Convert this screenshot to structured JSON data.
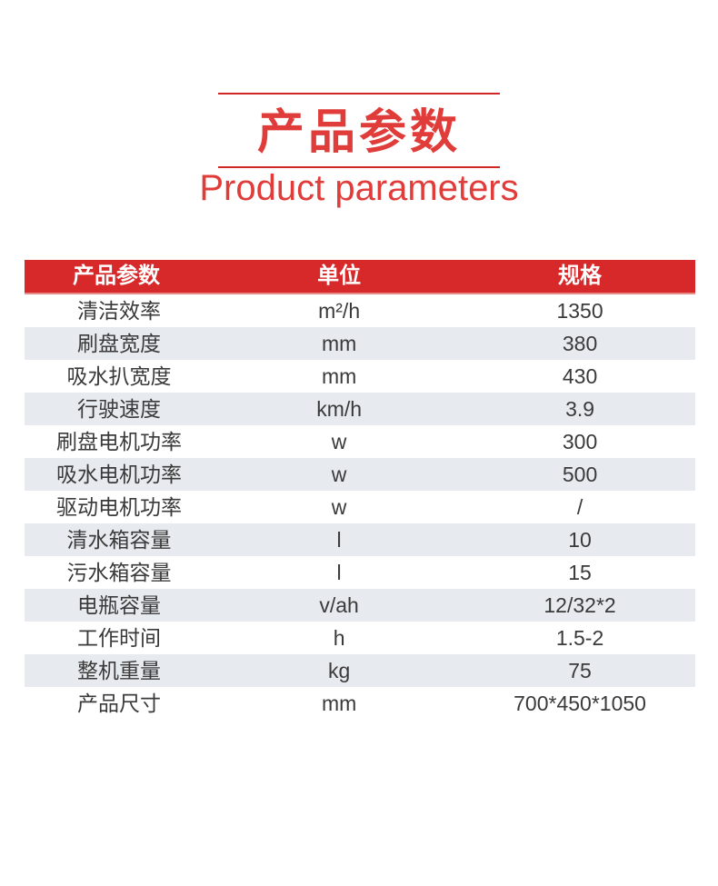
{
  "header": {
    "title_cn": "产品参数",
    "title_en": "Product parameters"
  },
  "table": {
    "columns": [
      {
        "label": "产品参数"
      },
      {
        "label": "单位"
      },
      {
        "label": "规格"
      }
    ],
    "rows": [
      {
        "name": "清洁效率",
        "unit": "m²/h",
        "value": "1350"
      },
      {
        "name": "刷盘宽度",
        "unit": "mm",
        "value": "380"
      },
      {
        "name": "吸水扒宽度",
        "unit": "mm",
        "value": "430"
      },
      {
        "name": "行驶速度",
        "unit": "km/h",
        "value": "3.9"
      },
      {
        "name": "刷盘电机功率",
        "unit": "w",
        "value": "300"
      },
      {
        "name": "吸水电机功率",
        "unit": "w",
        "value": "500"
      },
      {
        "name": "驱动电机功率",
        "unit": "w",
        "value": "/"
      },
      {
        "name": "清水箱容量",
        "unit": "l",
        "value": "10"
      },
      {
        "name": "污水箱容量",
        "unit": "l",
        "value": "15"
      },
      {
        "name": "电瓶容量",
        "unit": "v/ah",
        "value": "12/32*2"
      },
      {
        "name": "工作时间",
        "unit": "h",
        "value": "1.5-2"
      },
      {
        "name": "整机重量",
        "unit": "kg",
        "value": "75"
      },
      {
        "name": "产品尺寸",
        "unit": "mm",
        "value": "700*450*1050"
      }
    ]
  },
  "colors": {
    "accent_red": "#d7282a",
    "title_red": "#e03c3a",
    "divider_red": "#cf2626",
    "row_alt": "#e7eaee",
    "header_text": "#ffffff",
    "body_text": "#3a3a3a"
  }
}
